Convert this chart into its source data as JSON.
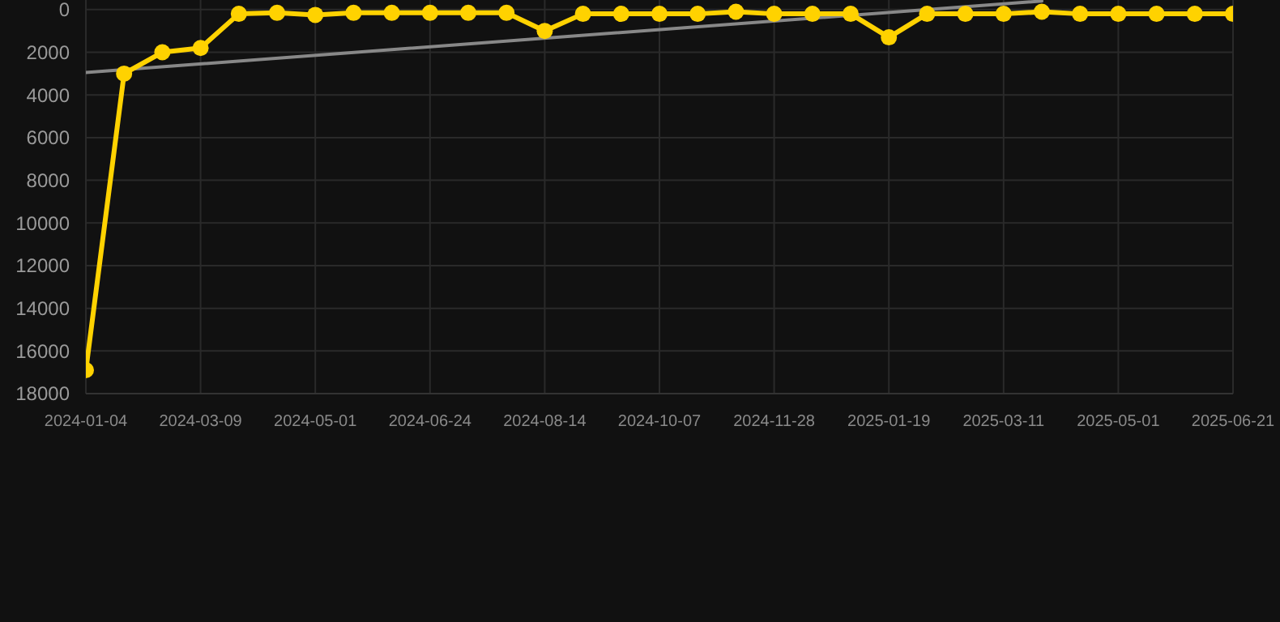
{
  "chart_data": {
    "type": "line",
    "categories": [
      "2024-01-04",
      null,
      null,
      "2024-03-09",
      null,
      null,
      "2024-05-01",
      null,
      null,
      "2024-06-24",
      null,
      null,
      "2024-08-14",
      null,
      null,
      "2024-10-07",
      null,
      null,
      "2024-11-28",
      null,
      null,
      "2025-01-19",
      null,
      null,
      "2025-03-11",
      null,
      null,
      "2025-05-01",
      null,
      null,
      "2025-06-21"
    ],
    "series": [
      {
        "color": "#ffd200",
        "values": [
          16900,
          3000,
          2000,
          1800,
          200,
          150,
          250,
          150,
          150,
          150,
          150,
          150,
          1000,
          200,
          200,
          200,
          200,
          100,
          200,
          200,
          200,
          1300,
          200,
          200,
          200,
          100,
          200,
          200,
          200,
          200,
          200
        ]
      },
      {
        "color": "#888888",
        "marker": "none",
        "values": [
          2950,
          null,
          null,
          null,
          null,
          null,
          null,
          null,
          null,
          null,
          null,
          null,
          null,
          null,
          null,
          null,
          null,
          null,
          null,
          null,
          null,
          null,
          null,
          null,
          null,
          -400,
          null,
          null,
          null,
          null,
          null
        ]
      }
    ],
    "ylim": [
      18000,
      -450
    ],
    "yticks": [
      0,
      2000,
      4000,
      6000,
      8000,
      10000,
      12000,
      14000,
      16000,
      18000
    ],
    "grid": true,
    "marker": "circle"
  }
}
